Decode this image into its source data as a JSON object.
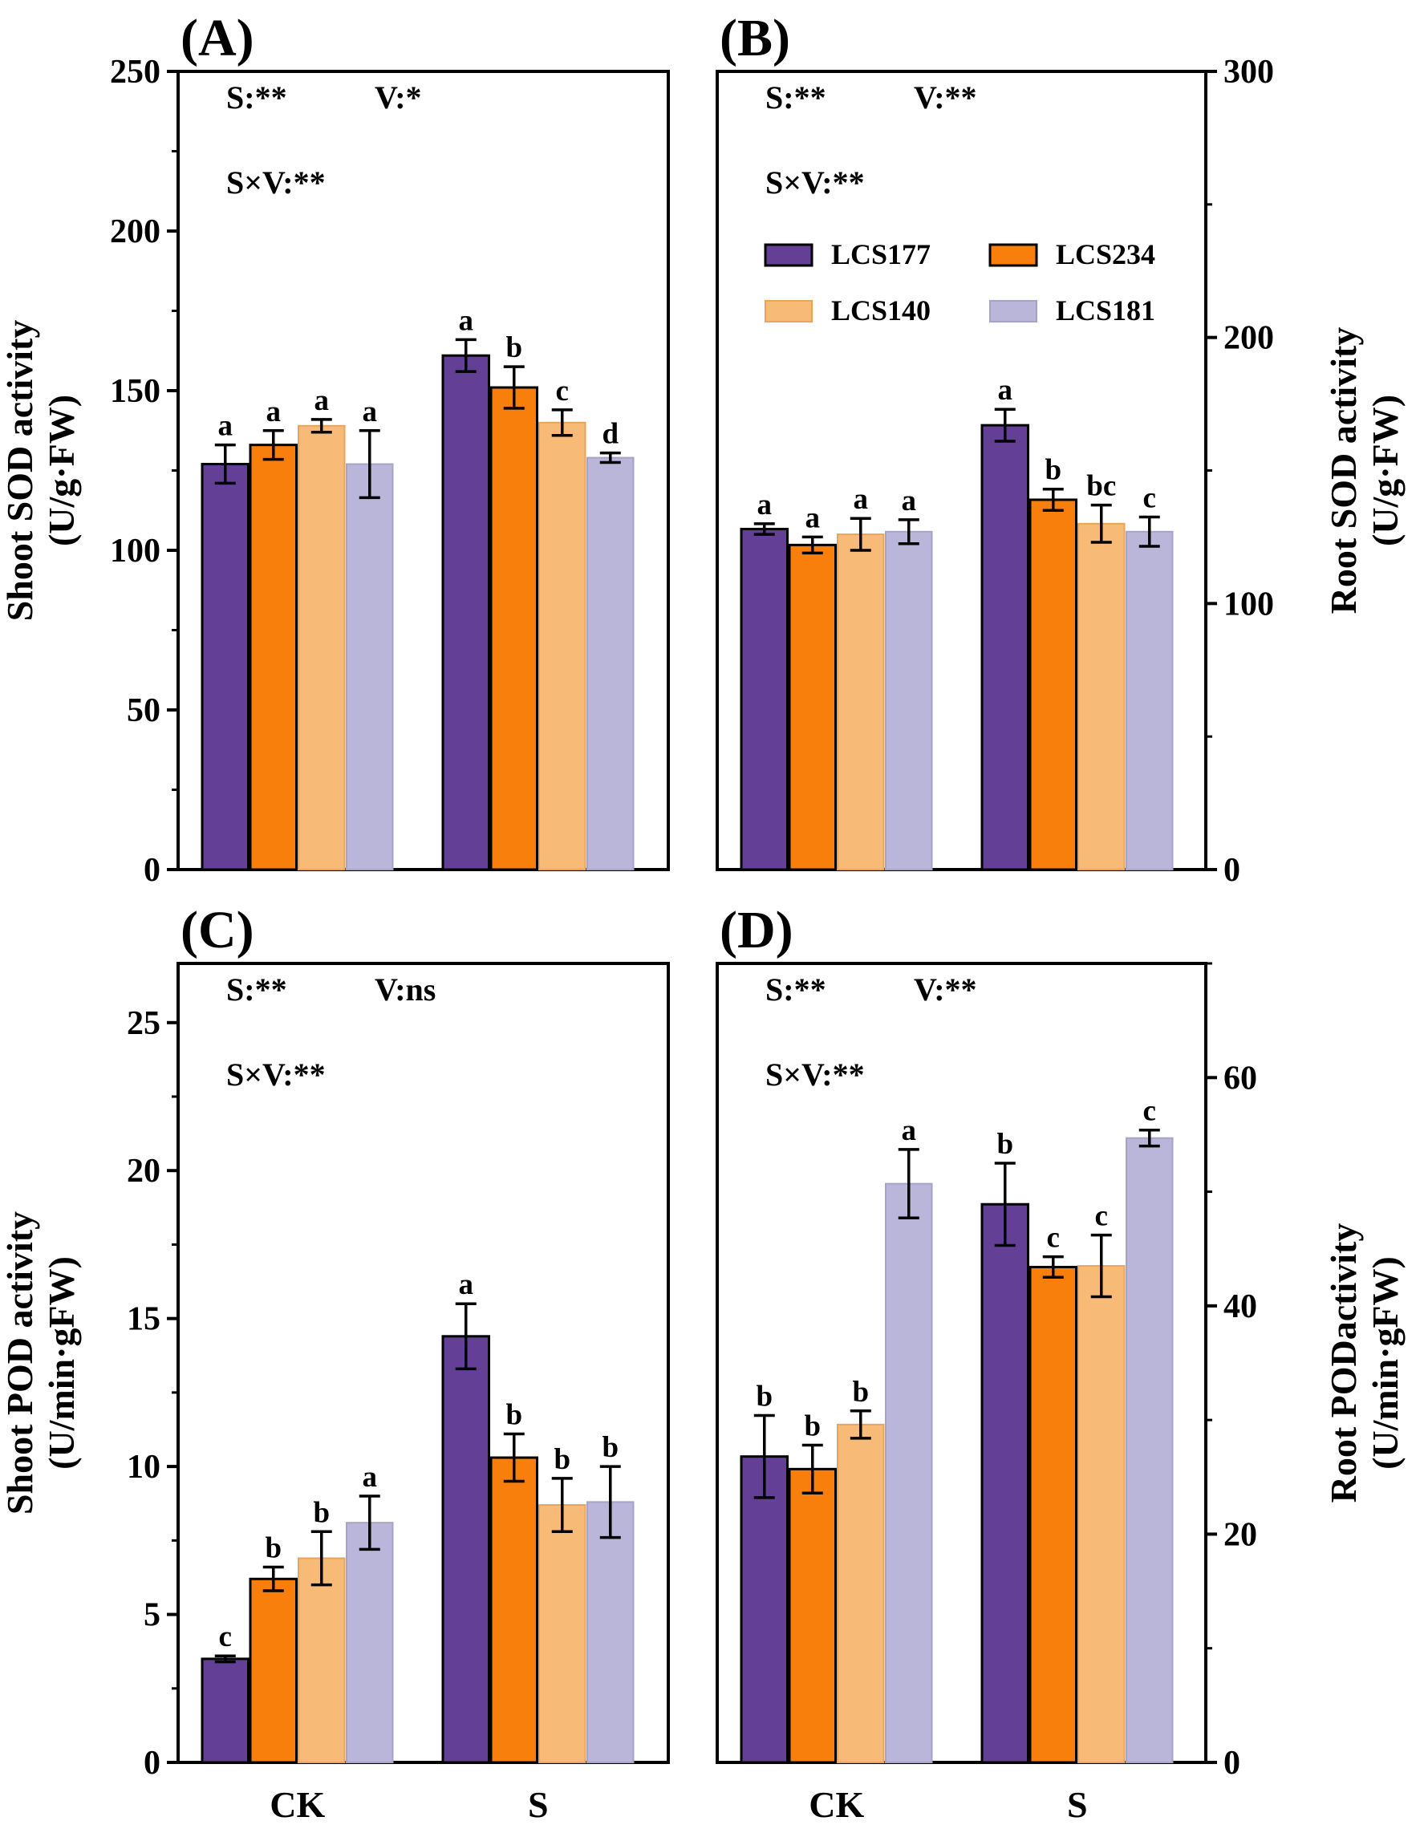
{
  "colors": {
    "LCS177": "#643f96",
    "LCS234": "#f97f0c",
    "LCS140": "#f8bb77",
    "LCS181": "#b9b6d9",
    "LCS140_edge": "#e8a45a",
    "LCS181_edge": "#a6a3c9"
  },
  "chart_data": [
    {
      "id": "A",
      "panel_label": "(A)",
      "type": "bar",
      "axis_side": "left",
      "ylabel_line1": "Shoot SOD activity",
      "ylabel_line2": "(U/g·FW)",
      "ylim": [
        0,
        250
      ],
      "major_ticks": [
        0,
        50,
        100,
        150,
        200,
        250
      ],
      "tick_labels": [
        "0",
        "50",
        "100",
        "150",
        "200",
        "250"
      ],
      "minor_ticks": [
        25,
        75,
        125,
        175,
        225
      ],
      "stats_line1_s": "S:**",
      "stats_line1_v": "V:*",
      "stats_line2": "S×V:**",
      "show_legend": false,
      "categories": [
        "CK",
        "S"
      ],
      "series": [
        {
          "name": "LCS177",
          "values": [
            127,
            161
          ],
          "errors": [
            6,
            5
          ],
          "letters": [
            "a",
            "a"
          ]
        },
        {
          "name": "LCS234",
          "values": [
            133,
            151
          ],
          "errors": [
            4.5,
            6.5
          ],
          "letters": [
            "a",
            "b"
          ]
        },
        {
          "name": "LCS140",
          "values": [
            139,
            140
          ],
          "errors": [
            2,
            4
          ],
          "letters": [
            "a",
            "c"
          ]
        },
        {
          "name": "LCS181",
          "values": [
            127,
            129
          ],
          "errors": [
            10.5,
            1.5
          ],
          "letters": [
            "a",
            "d"
          ]
        }
      ]
    },
    {
      "id": "B",
      "panel_label": "(B)",
      "type": "bar",
      "axis_side": "right",
      "ylabel_line1": "Root SOD activity",
      "ylabel_line2": "(U/g·FW)",
      "ylim": [
        0,
        300
      ],
      "major_ticks": [
        0,
        100,
        200,
        300
      ],
      "tick_labels": [
        "0",
        "100",
        "200",
        "300"
      ],
      "minor_ticks": [
        50,
        150,
        250
      ],
      "stats_line1_s": "S:**",
      "stats_line1_v": "V:**",
      "stats_line2": "S×V:**",
      "show_legend": true,
      "legend": [
        "LCS177",
        "LCS234",
        "LCS140",
        "LCS181"
      ],
      "categories": [
        "CK",
        "S"
      ],
      "series": [
        {
          "name": "LCS177",
          "values": [
            128,
            167
          ],
          "errors": [
            2,
            6
          ],
          "letters": [
            "a",
            "a"
          ]
        },
        {
          "name": "LCS234",
          "values": [
            122,
            139
          ],
          "errors": [
            3,
            4
          ],
          "letters": [
            "a",
            "b"
          ]
        },
        {
          "name": "LCS140",
          "values": [
            126,
            130
          ],
          "errors": [
            6,
            7
          ],
          "letters": [
            "a",
            "bc"
          ]
        },
        {
          "name": "LCS181",
          "values": [
            127,
            127
          ],
          "errors": [
            4.5,
            5.5
          ],
          "letters": [
            "a",
            "c"
          ]
        }
      ]
    },
    {
      "id": "C",
      "panel_label": "(C)",
      "type": "bar",
      "axis_side": "left",
      "ylabel_line1": "Shoot POD activity",
      "ylabel_line2": "(U/min·gFW)",
      "ylim": [
        0,
        27
      ],
      "major_ticks": [
        0,
        5,
        10,
        15,
        20,
        25
      ],
      "tick_labels": [
        "0",
        "5",
        "10",
        "15",
        "20",
        "25"
      ],
      "minor_ticks": [
        2.5,
        7.5,
        12.5,
        17.5,
        22.5
      ],
      "stats_line1_s": "S:**",
      "stats_line1_v": "V:ns",
      "stats_line2": "S×V:**",
      "show_legend": false,
      "categories": [
        "CK",
        "S"
      ],
      "series": [
        {
          "name": "LCS177",
          "values": [
            3.5,
            14.4
          ],
          "errors": [
            0.1,
            1.1
          ],
          "letters": [
            "c",
            "a"
          ]
        },
        {
          "name": "LCS234",
          "values": [
            6.2,
            10.3
          ],
          "errors": [
            0.4,
            0.8
          ],
          "letters": [
            "b",
            "b"
          ]
        },
        {
          "name": "LCS140",
          "values": [
            6.9,
            8.7
          ],
          "errors": [
            0.9,
            0.9
          ],
          "letters": [
            "b",
            "b"
          ]
        },
        {
          "name": "LCS181",
          "values": [
            8.1,
            8.8
          ],
          "errors": [
            0.9,
            1.2
          ],
          "letters": [
            "a",
            "b"
          ]
        }
      ]
    },
    {
      "id": "D",
      "panel_label": "(D)",
      "type": "bar",
      "axis_side": "right",
      "ylabel_line1": "Root PODactivity",
      "ylabel_line2": "(U/min·gFW)",
      "ylim": [
        0,
        70
      ],
      "major_ticks": [
        0,
        20,
        40,
        60
      ],
      "tick_labels": [
        "0",
        "20",
        "40",
        "60"
      ],
      "minor_ticks": [
        10,
        30,
        50,
        70
      ],
      "stats_line1_s": "S:**",
      "stats_line1_v": "V:**",
      "stats_line2": "S×V:**",
      "show_legend": false,
      "categories": [
        "CK",
        "S"
      ],
      "series": [
        {
          "name": "LCS177",
          "values": [
            26.8,
            48.9
          ],
          "errors": [
            3.6,
            3.6
          ],
          "letters": [
            "b",
            "b"
          ]
        },
        {
          "name": "LCS234",
          "values": [
            25.7,
            43.4
          ],
          "errors": [
            2.1,
            0.9
          ],
          "letters": [
            "b",
            "c"
          ]
        },
        {
          "name": "LCS140",
          "values": [
            29.6,
            43.5
          ],
          "errors": [
            1.2,
            2.7
          ],
          "letters": [
            "b",
            "c"
          ]
        },
        {
          "name": "LCS181",
          "values": [
            50.7,
            54.7
          ],
          "errors": [
            3.0,
            0.7
          ],
          "letters": [
            "a",
            "c"
          ]
        }
      ]
    }
  ]
}
